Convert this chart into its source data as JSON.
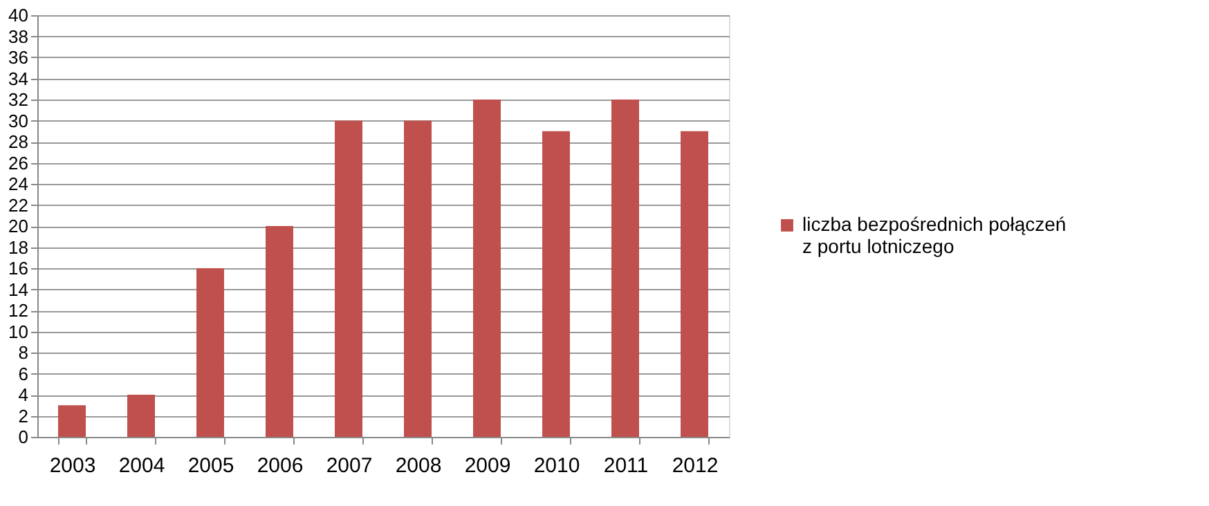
{
  "chart_data": {
    "type": "bar",
    "categories": [
      "2003",
      "2004",
      "2005",
      "2006",
      "2007",
      "2008",
      "2009",
      "2010",
      "2011",
      "2012"
    ],
    "series": [
      {
        "name": "liczba bezpośrednich połączeń z portu lotniczego",
        "color": "#c0504d",
        "values": [
          3,
          4,
          16,
          20,
          30,
          30,
          32,
          29,
          32,
          29
        ]
      }
    ],
    "ylim": [
      0,
      40
    ],
    "yticks": [
      0,
      2,
      4,
      6,
      8,
      10,
      12,
      14,
      16,
      18,
      20,
      22,
      24,
      26,
      28,
      30,
      32,
      34,
      36,
      38,
      40
    ],
    "grid": "y",
    "legend": "right"
  }
}
